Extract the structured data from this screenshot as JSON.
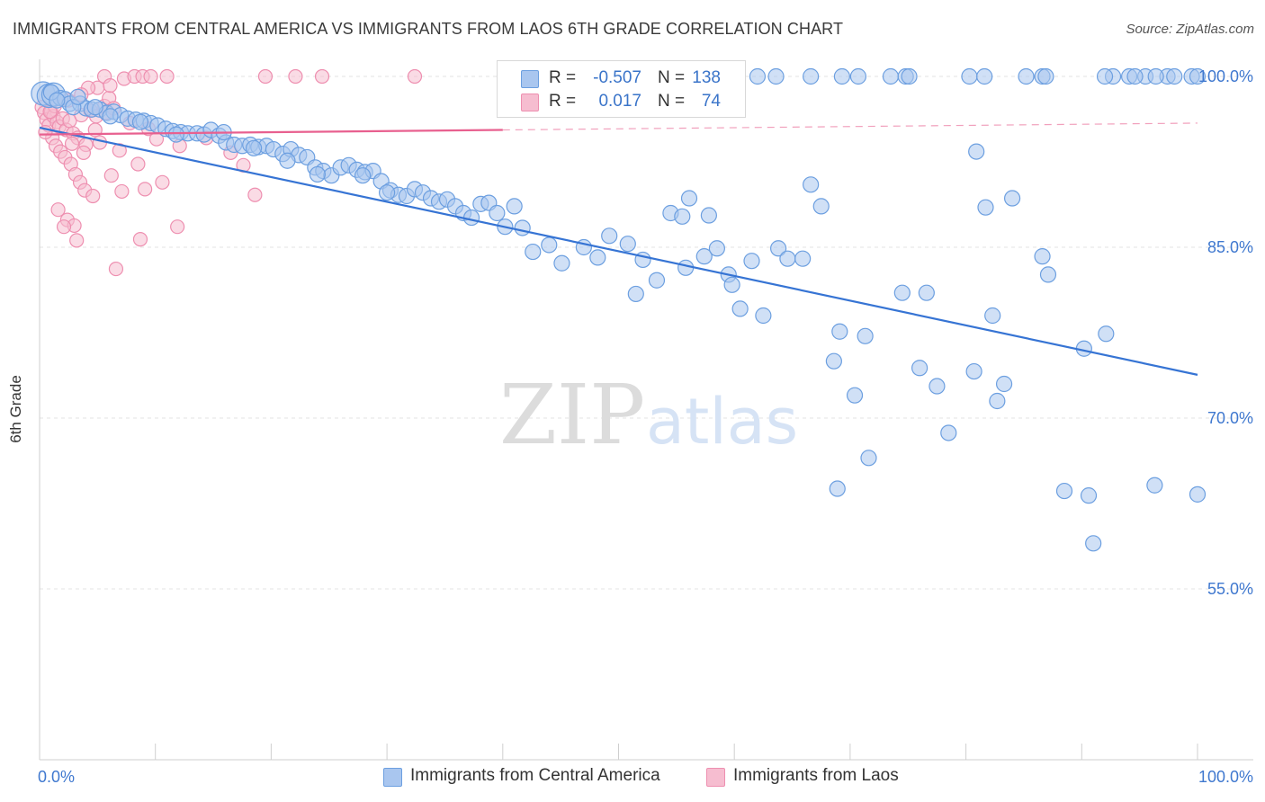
{
  "header": {
    "title": "IMMIGRANTS FROM CENTRAL AMERICA VS IMMIGRANTS FROM LAOS 6TH GRADE CORRELATION CHART",
    "source": "Source: ZipAtlas.com"
  },
  "legend": {
    "r_label": "R =",
    "n_label": "N =",
    "series": [
      {
        "r": "-0.507",
        "n": "138"
      },
      {
        "r": "0.017",
        "n": "74"
      }
    ]
  },
  "watermark": {
    "zip": "ZIP",
    "atlas": "atlas"
  },
  "colors": {
    "blue_fill": "#a9c6ef",
    "blue_stroke": "#6c9fe0",
    "blue_line": "#3674d4",
    "pink_fill": "#f6bdd0",
    "pink_stroke": "#ee8fb0",
    "pink_line": "#e8608f",
    "tick_text": "#3f78cf",
    "grid": "#e3e3e3"
  },
  "chart_data": {
    "type": "scatter",
    "title": "IMMIGRANTS FROM CENTRAL AMERICA VS IMMIGRANTS FROM LAOS 6TH GRADE CORRELATION CHART",
    "xlabel": "",
    "ylabel": "6th Grade",
    "xlim": [
      0,
      100
    ],
    "ylim": [
      40,
      101.5
    ],
    "x_tick_labels": [
      {
        "value": 0,
        "label": "0.0%"
      },
      {
        "value": 100,
        "label": "100.0%"
      }
    ],
    "y_tick_labels": [
      {
        "value": 100,
        "label": "100.0%"
      },
      {
        "value": 85,
        "label": "85.0%"
      },
      {
        "value": 70,
        "label": "70.0%"
      },
      {
        "value": 55,
        "label": "55.0%"
      }
    ],
    "grid": true,
    "legend_position": "top-center",
    "series": [
      {
        "name": "Immigrants from Central America",
        "color": "#6c9fe0",
        "r": -0.507,
        "n": 138,
        "trend": {
          "x": [
            0,
            100
          ],
          "y": [
            95.5,
            73.8
          ],
          "dashed_from": null
        },
        "points": [
          [
            0.3,
            98.5
          ],
          [
            0.8,
            98.3
          ],
          [
            1.2,
            98.4
          ],
          [
            1.8,
            98.1
          ],
          [
            2.2,
            98.0
          ],
          [
            2.6,
            97.6
          ],
          [
            3.5,
            97.6
          ],
          [
            4.0,
            97.2
          ],
          [
            4.5,
            97.1
          ],
          [
            5.2,
            97.1
          ],
          [
            5.8,
            96.8
          ],
          [
            6.4,
            96.9
          ],
          [
            7.0,
            96.6
          ],
          [
            7.6,
            96.3
          ],
          [
            8.3,
            96.2
          ],
          [
            9.0,
            96.1
          ],
          [
            9.6,
            95.9
          ],
          [
            10.2,
            95.7
          ],
          [
            10.9,
            95.4
          ],
          [
            11.5,
            95.2
          ],
          [
            12.2,
            95.1
          ],
          [
            12.8,
            95.0
          ],
          [
            13.6,
            95.0
          ],
          [
            14.2,
            94.9
          ],
          [
            14.8,
            95.3
          ],
          [
            15.5,
            94.8
          ],
          [
            16.1,
            94.2
          ],
          [
            16.8,
            94.0
          ],
          [
            17.5,
            93.9
          ],
          [
            18.2,
            94.0
          ],
          [
            18.9,
            93.8
          ],
          [
            19.6,
            93.9
          ],
          [
            20.2,
            93.6
          ],
          [
            21.0,
            93.2
          ],
          [
            21.7,
            93.6
          ],
          [
            22.4,
            93.1
          ],
          [
            23.1,
            92.9
          ],
          [
            23.8,
            92.0
          ],
          [
            24.5,
            91.7
          ],
          [
            25.2,
            91.3
          ],
          [
            26.0,
            92.0
          ],
          [
            26.7,
            92.2
          ],
          [
            27.4,
            91.8
          ],
          [
            28.1,
            91.6
          ],
          [
            28.8,
            91.7
          ],
          [
            29.5,
            90.8
          ],
          [
            30.3,
            90.0
          ],
          [
            31.0,
            89.6
          ],
          [
            31.7,
            89.5
          ],
          [
            32.4,
            90.1
          ],
          [
            33.1,
            89.8
          ],
          [
            33.8,
            89.3
          ],
          [
            34.5,
            89.0
          ],
          [
            35.2,
            89.2
          ],
          [
            35.9,
            88.6
          ],
          [
            36.6,
            88.0
          ],
          [
            37.3,
            87.6
          ],
          [
            38.1,
            88.8
          ],
          [
            38.8,
            88.9
          ],
          [
            39.5,
            88.0
          ],
          [
            40.2,
            86.8
          ],
          [
            41.0,
            88.6
          ],
          [
            41.7,
            86.7
          ],
          [
            42.6,
            84.6
          ],
          [
            44.0,
            85.2
          ],
          [
            45.1,
            83.6
          ],
          [
            47.0,
            85.0
          ],
          [
            48.2,
            84.1
          ],
          [
            49.2,
            86.0
          ],
          [
            50.8,
            85.3
          ],
          [
            52.1,
            83.9
          ],
          [
            51.5,
            80.9
          ],
          [
            53.3,
            82.1
          ],
          [
            54.5,
            88.0
          ],
          [
            55.5,
            87.7
          ],
          [
            56.1,
            89.3
          ],
          [
            55.8,
            83.2
          ],
          [
            57.4,
            84.2
          ],
          [
            57.8,
            87.8
          ],
          [
            58.5,
            84.9
          ],
          [
            59.5,
            82.6
          ],
          [
            59.8,
            81.7
          ],
          [
            60.5,
            79.6
          ],
          [
            61.5,
            83.8
          ],
          [
            62.5,
            79.0
          ],
          [
            63.8,
            84.9
          ],
          [
            64.6,
            84.0
          ],
          [
            65.9,
            84.0
          ],
          [
            66.6,
            90.5
          ],
          [
            67.5,
            88.6
          ],
          [
            68.6,
            75.0
          ],
          [
            68.9,
            63.8
          ],
          [
            69.1,
            77.6
          ],
          [
            70.4,
            72.0
          ],
          [
            71.3,
            77.2
          ],
          [
            71.6,
            66.5
          ],
          [
            74.5,
            81.0
          ],
          [
            76.0,
            74.4
          ],
          [
            76.6,
            81.0
          ],
          [
            77.5,
            72.8
          ],
          [
            78.5,
            68.7
          ],
          [
            80.7,
            74.1
          ],
          [
            80.9,
            93.4
          ],
          [
            81.7,
            88.5
          ],
          [
            82.3,
            79.0
          ],
          [
            82.7,
            71.5
          ],
          [
            83.3,
            73.0
          ],
          [
            84.0,
            89.3
          ],
          [
            86.6,
            84.2
          ],
          [
            87.1,
            82.6
          ],
          [
            88.5,
            63.6
          ],
          [
            90.2,
            76.1
          ],
          [
            90.6,
            63.2
          ],
          [
            91.0,
            59.0
          ],
          [
            92.1,
            77.4
          ],
          [
            96.3,
            64.1
          ],
          [
            100.0,
            63.3
          ],
          [
            86.6,
            100.0
          ],
          [
            92.7,
            100.0
          ],
          [
            94.1,
            100.0
          ],
          [
            95.5,
            100.0
          ],
          [
            97.4,
            100.0
          ],
          [
            98.0,
            100.0
          ],
          [
            99.5,
            100.0
          ],
          [
            73.5,
            100.0
          ],
          [
            74.8,
            100.0
          ],
          [
            80.3,
            100.0
          ],
          [
            81.6,
            100.0
          ],
          [
            85.2,
            100.0
          ],
          [
            86.9,
            100.0
          ],
          [
            92.0,
            100.0
          ],
          [
            96.4,
            100.0
          ],
          [
            69.3,
            100.0
          ],
          [
            70.7,
            100.0
          ],
          [
            62.0,
            100.0
          ],
          [
            63.6,
            100.0
          ],
          [
            66.6,
            100.0
          ],
          [
            100.0,
            100.0
          ],
          [
            75.1,
            100.0
          ],
          [
            94.6,
            100.0
          ],
          [
            1.0,
            98.6
          ],
          [
            1.5,
            97.9
          ],
          [
            2.9,
            97.3
          ],
          [
            3.3,
            98.2
          ],
          [
            4.8,
            97.3
          ],
          [
            6.1,
            96.5
          ],
          [
            8.7,
            96.0
          ],
          [
            11.8,
            94.9
          ],
          [
            15.9,
            95.1
          ],
          [
            18.5,
            93.7
          ],
          [
            21.4,
            92.6
          ],
          [
            24.0,
            91.4
          ],
          [
            27.9,
            91.3
          ],
          [
            30.0,
            89.8
          ]
        ]
      },
      {
        "name": "Immigrants from Laos",
        "color": "#ee8fb0",
        "r": 0.017,
        "n": 74,
        "trend": {
          "x": [
            0,
            100
          ],
          "y": [
            94.9,
            95.9
          ],
          "dashed_from": 40
        },
        "points": [
          [
            0.2,
            97.3
          ],
          [
            0.4,
            96.8
          ],
          [
            0.6,
            96.2
          ],
          [
            0.8,
            95.7
          ],
          [
            1.0,
            96.9
          ],
          [
            1.2,
            96.5
          ],
          [
            1.5,
            96.0
          ],
          [
            1.7,
            95.6
          ],
          [
            2.0,
            96.3
          ],
          [
            2.3,
            95.3
          ],
          [
            2.6,
            96.1
          ],
          [
            2.9,
            95.0
          ],
          [
            3.3,
            94.6
          ],
          [
            3.6,
            96.6
          ],
          [
            4.0,
            94.0
          ],
          [
            4.4,
            97.0
          ],
          [
            4.8,
            95.3
          ],
          [
            5.2,
            94.2
          ],
          [
            5.6,
            97.4
          ],
          [
            6.0,
            98.1
          ],
          [
            1.1,
            94.6
          ],
          [
            1.4,
            93.9
          ],
          [
            1.8,
            93.4
          ],
          [
            2.2,
            92.9
          ],
          [
            2.7,
            92.3
          ],
          [
            3.1,
            91.4
          ],
          [
            3.5,
            90.7
          ],
          [
            3.9,
            90.0
          ],
          [
            1.6,
            88.3
          ],
          [
            2.4,
            87.4
          ],
          [
            3.0,
            86.9
          ],
          [
            4.6,
            89.5
          ],
          [
            6.2,
            91.3
          ],
          [
            7.1,
            89.9
          ],
          [
            8.5,
            92.3
          ],
          [
            9.1,
            90.1
          ],
          [
            10.6,
            90.7
          ],
          [
            12.1,
            93.9
          ],
          [
            14.4,
            94.6
          ],
          [
            16.5,
            93.3
          ],
          [
            17.6,
            92.2
          ],
          [
            18.6,
            89.6
          ],
          [
            2.1,
            86.8
          ],
          [
            3.2,
            85.6
          ],
          [
            6.6,
            83.1
          ],
          [
            8.7,
            85.7
          ],
          [
            11.9,
            86.8
          ],
          [
            5.0,
            99.0
          ],
          [
            5.6,
            100.0
          ],
          [
            6.1,
            99.2
          ],
          [
            7.3,
            99.8
          ],
          [
            8.2,
            100.0
          ],
          [
            8.9,
            100.0
          ],
          [
            9.6,
            100.0
          ],
          [
            11.0,
            100.0
          ],
          [
            19.5,
            100.0
          ],
          [
            22.1,
            100.0
          ],
          [
            24.4,
            100.0
          ],
          [
            32.4,
            100.0
          ],
          [
            4.2,
            99.0
          ],
          [
            3.6,
            98.4
          ],
          [
            2.5,
            97.9
          ],
          [
            1.3,
            97.4
          ],
          [
            0.9,
            96.9
          ],
          [
            4.9,
            96.5
          ],
          [
            5.7,
            96.8
          ],
          [
            6.4,
            97.2
          ],
          [
            7.8,
            95.9
          ],
          [
            9.4,
            95.4
          ],
          [
            10.1,
            94.5
          ],
          [
            0.5,
            95.1
          ],
          [
            2.8,
            94.1
          ],
          [
            3.8,
            93.3
          ],
          [
            6.9,
            93.5
          ]
        ]
      }
    ]
  },
  "bottom_legend": {
    "items": [
      {
        "label": "Immigrants from Central America"
      },
      {
        "label": "Immigrants from Laos"
      }
    ]
  }
}
